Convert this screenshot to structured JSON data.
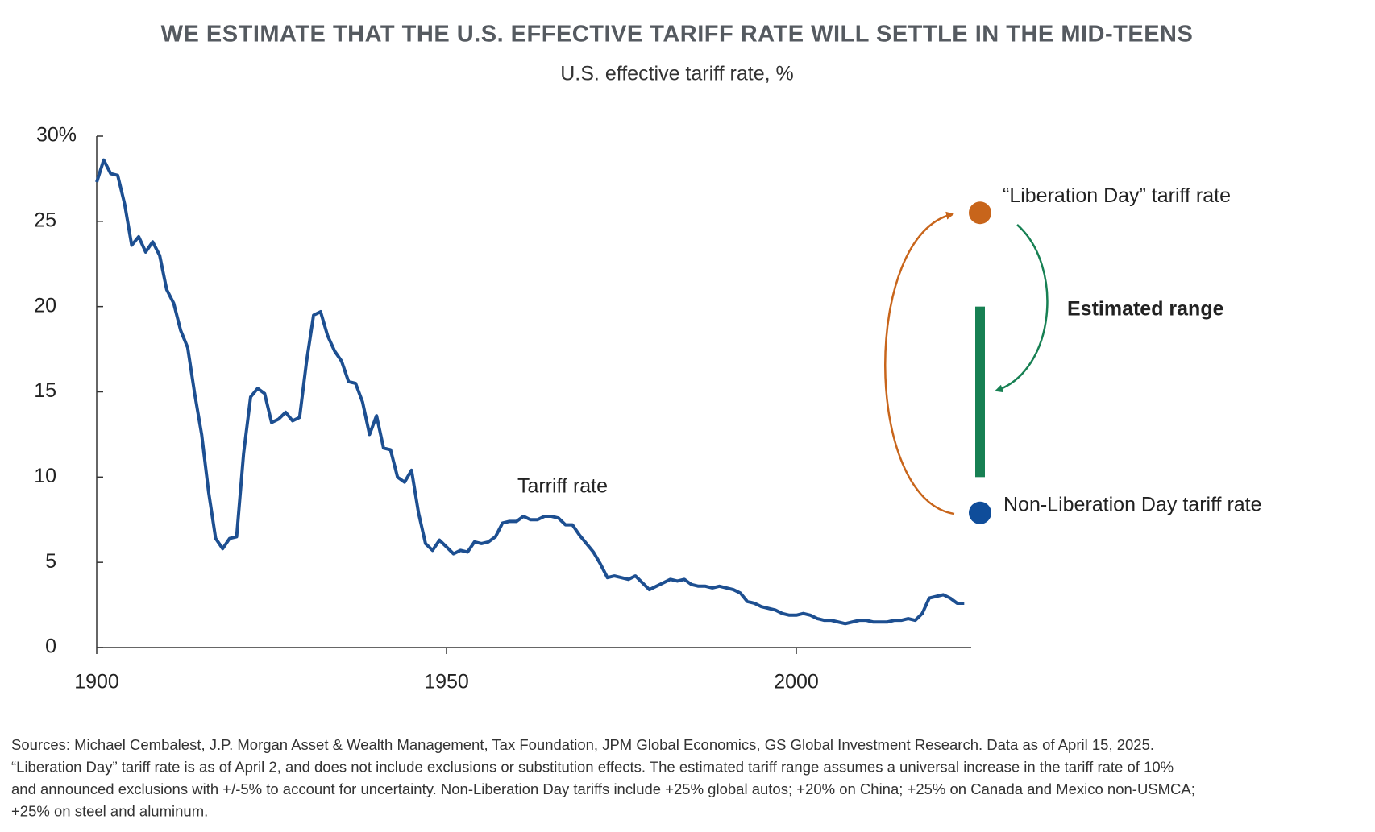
{
  "chart_data": {
    "type": "line",
    "title": "WE ESTIMATE THAT THE U.S. EFFECTIVE TARIFF RATE WILL SETTLE IN THE MID-TEENS",
    "subtitle": "U.S. effective tariff rate, %",
    "x": [
      1900,
      1901,
      1902,
      1903,
      1904,
      1905,
      1906,
      1907,
      1908,
      1909,
      1910,
      1911,
      1912,
      1913,
      1914,
      1915,
      1916,
      1917,
      1918,
      1919,
      1920,
      1921,
      1922,
      1923,
      1924,
      1925,
      1926,
      1927,
      1928,
      1929,
      1930,
      1931,
      1932,
      1933,
      1934,
      1935,
      1936,
      1937,
      1938,
      1939,
      1940,
      1941,
      1942,
      1943,
      1944,
      1945,
      1946,
      1947,
      1948,
      1949,
      1950,
      1951,
      1952,
      1953,
      1954,
      1955,
      1956,
      1957,
      1958,
      1959,
      1960,
      1961,
      1962,
      1963,
      1964,
      1965,
      1966,
      1967,
      1968,
      1969,
      1970,
      1971,
      1972,
      1973,
      1974,
      1975,
      1976,
      1977,
      1978,
      1979,
      1980,
      1981,
      1982,
      1983,
      1984,
      1985,
      1986,
      1987,
      1988,
      1989,
      1990,
      1991,
      1992,
      1993,
      1994,
      1995,
      1996,
      1997,
      1998,
      1999,
      2000,
      2001,
      2002,
      2003,
      2004,
      2005,
      2006,
      2007,
      2008,
      2009,
      2010,
      2011,
      2012,
      2013,
      2014,
      2015,
      2016,
      2017,
      2018,
      2019,
      2020,
      2021,
      2022,
      2023,
      2024
    ],
    "series": [
      {
        "name": "Tarriff rate",
        "color": "#1d4f91",
        "values": [
          27.3,
          28.6,
          27.8,
          27.7,
          26.0,
          23.6,
          24.1,
          23.2,
          23.8,
          23.0,
          21.0,
          20.2,
          18.6,
          17.6,
          14.9,
          12.5,
          9.1,
          6.4,
          5.8,
          6.4,
          6.5,
          11.4,
          14.7,
          15.2,
          14.9,
          13.2,
          13.4,
          13.8,
          13.3,
          13.5,
          16.8,
          19.5,
          19.7,
          18.3,
          17.4,
          16.8,
          15.6,
          15.5,
          14.4,
          12.5,
          13.6,
          11.7,
          11.6,
          10.0,
          9.7,
          10.4,
          7.9,
          6.1,
          5.7,
          6.3,
          5.9,
          5.5,
          5.7,
          5.6,
          6.2,
          6.1,
          6.2,
          6.5,
          7.3,
          7.4,
          7.4,
          7.7,
          7.5,
          7.5,
          7.7,
          7.7,
          7.6,
          7.2,
          7.2,
          6.6,
          6.1,
          5.6,
          4.9,
          4.1,
          4.2,
          4.1,
          4.0,
          4.2,
          3.8,
          3.4,
          3.6,
          3.8,
          4.0,
          3.9,
          4.0,
          3.7,
          3.6,
          3.6,
          3.5,
          3.6,
          3.5,
          3.4,
          3.2,
          2.7,
          2.6,
          2.4,
          2.3,
          2.2,
          2.0,
          1.9,
          1.9,
          2.0,
          1.9,
          1.7,
          1.6,
          1.6,
          1.5,
          1.4,
          1.5,
          1.6,
          1.6,
          1.5,
          1.5,
          1.5,
          1.6,
          1.6,
          1.7,
          1.6,
          2.0,
          2.9,
          3.0,
          3.1,
          2.9,
          2.6,
          2.6
        ]
      }
    ],
    "xlim": [
      1900,
      2025
    ],
    "xticks": [
      1900,
      1950,
      2000
    ],
    "ylim": [
      0,
      30
    ],
    "yticks": [
      0,
      5,
      10,
      15,
      20,
      {
        "value": 30,
        "label": "30%"
      },
      25
    ],
    "markers": [
      {
        "label": "“Liberation Day” tariff rate",
        "value": 25.5,
        "color": "#c8651b"
      },
      {
        "label": "Non-Liberation Day tariff rate",
        "value": 7.9,
        "color": "#0f4d9a"
      }
    ],
    "range": {
      "label": "Estimated range",
      "values": [
        10,
        20
      ],
      "color": "#178053"
    },
    "footnote": [
      "Sources: Michael Cembalest, J.P. Morgan Asset & Wealth Management, Tax Foundation, JPM Global Economics, GS Global Investment Research. Data as of April 15, 2025.",
      "“Liberation Day” tariff rate is as of April 2, and does not include exclusions or substitution effects. The estimated tariff range assumes a universal increase in the tariff rate of 10%",
      "and announced exclusions with +/-5% to account for uncertainty. Non-Liberation Day tariffs include +25% global autos; +20% on China; +25% on Canada and Mexico non-USMCA;",
      "+25% on steel and aluminum."
    ]
  }
}
